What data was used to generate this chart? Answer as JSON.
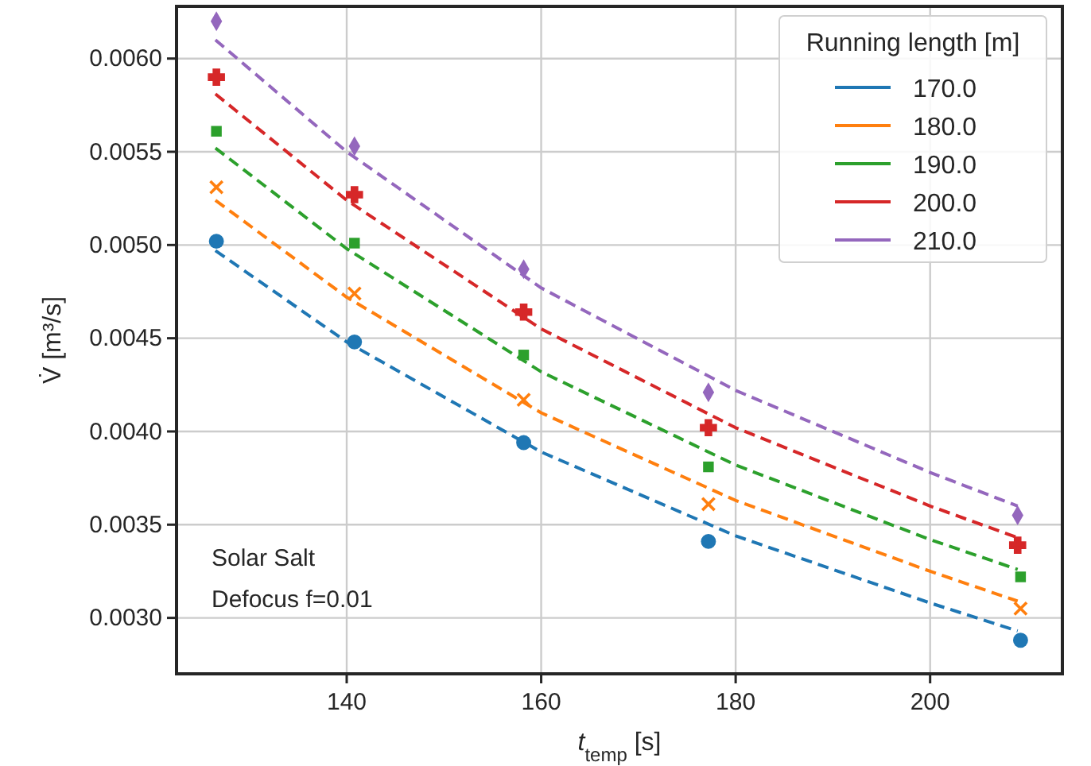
{
  "chart_data": {
    "type": "scatter",
    "xlabel": "t$_{temp}$ [s]",
    "ylabel": "V̇ [m³/s]",
    "legend_title": "Running length [m]",
    "legend": "top right",
    "grid": true,
    "xlim": [
      122.5,
      213.6
    ],
    "xticks": [
      140,
      160,
      180,
      200
    ],
    "ylim": [
      0.0027,
      0.00628
    ],
    "yticks": [
      {
        "value": 0.003,
        "label": "0.0030"
      },
      {
        "value": 0.0035,
        "label": "0.0035"
      },
      {
        "value": 0.004,
        "label": "0.0040"
      },
      {
        "value": 0.0045,
        "label": "0.0045"
      },
      {
        "value": 0.005,
        "label": "0.0050"
      },
      {
        "value": 0.0055,
        "label": "0.0055"
      },
      {
        "value": 0.006,
        "label": "0.0060"
      }
    ],
    "annotations": [
      "Solar Salt",
      "Defocus f=0.01"
    ],
    "series": [
      {
        "type": "line",
        "name": "170.0",
        "color": "#1f77b4",
        "line_style": "dashed",
        "x": [
          126.5,
          140,
          160,
          180,
          200,
          209
        ],
        "values": [
          0.00497,
          0.00448,
          0.00389,
          0.00344,
          0.00308,
          0.00293
        ]
      },
      {
        "type": "line",
        "name": "180.0",
        "color": "#ff7f0e",
        "line_style": "dashed",
        "x": [
          126.5,
          140,
          160,
          180,
          200,
          209
        ],
        "values": [
          0.00524,
          0.00472,
          0.0041,
          0.00363,
          0.00325,
          0.00309
        ]
      },
      {
        "type": "line",
        "name": "190.0",
        "color": "#2ca02c",
        "line_style": "dashed",
        "x": [
          126.5,
          140,
          160,
          180,
          200,
          209
        ],
        "values": [
          0.00552,
          0.00498,
          0.00432,
          0.00382,
          0.00342,
          0.00326
        ]
      },
      {
        "type": "line",
        "name": "200.0",
        "color": "#d62728",
        "line_style": "dashed",
        "x": [
          126.5,
          140,
          160,
          180,
          200,
          209
        ],
        "values": [
          0.00581,
          0.00524,
          0.00455,
          0.00402,
          0.0036,
          0.00343
        ]
      },
      {
        "type": "line",
        "name": "210.0",
        "color": "#9467bd",
        "line_style": "dashed",
        "x": [
          126.5,
          140,
          160,
          180,
          200,
          209
        ],
        "values": [
          0.0061,
          0.0055,
          0.00477,
          0.00422,
          0.00378,
          0.0036
        ]
      },
      {
        "color": "#1f77b4",
        "marker": "circle",
        "x": [
          126.6,
          140.8,
          158.2,
          177.2,
          209.3
        ],
        "values": [
          0.00502,
          0.00448,
          0.00394,
          0.00341,
          0.00288
        ]
      },
      {
        "color": "#ff7f0e",
        "marker": "x",
        "x": [
          126.6,
          140.8,
          158.2,
          177.2,
          209.3
        ],
        "values": [
          0.00531,
          0.00474,
          0.00417,
          0.00361,
          0.00305
        ]
      },
      {
        "color": "#2ca02c",
        "marker": "square",
        "x": [
          126.6,
          140.8,
          158.2,
          177.2,
          209.3
        ],
        "values": [
          0.00561,
          0.00501,
          0.00441,
          0.00381,
          0.00322
        ]
      },
      {
        "color": "#d62728",
        "marker": "cross",
        "x": [
          126.6,
          140.8,
          158.2,
          177.2,
          209.0
        ],
        "values": [
          0.0059,
          0.00527,
          0.00464,
          0.00402,
          0.00339
        ]
      },
      {
        "color": "#9467bd",
        "marker": "diamond",
        "x": [
          126.6,
          140.8,
          158.2,
          177.2,
          209.0
        ],
        "values": [
          0.0062,
          0.00553,
          0.00487,
          0.00421,
          0.00355
        ]
      }
    ]
  }
}
